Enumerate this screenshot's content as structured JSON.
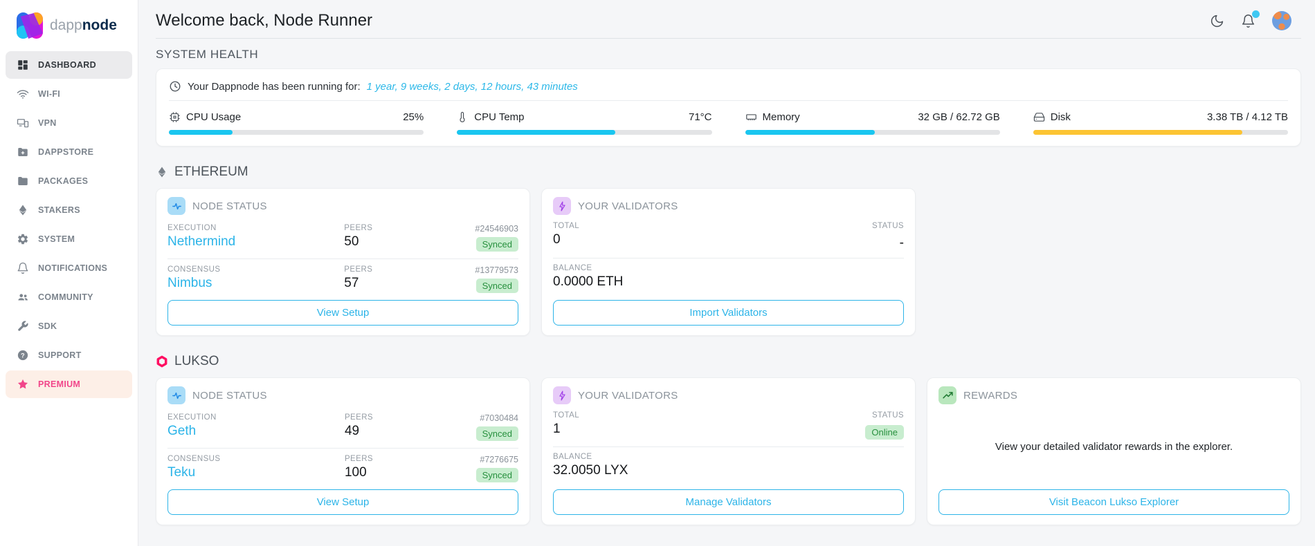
{
  "brand": {
    "name_light": "dapp",
    "name_bold": "node"
  },
  "sidebar": {
    "items": [
      {
        "label": "DASHBOARD"
      },
      {
        "label": "WI-FI"
      },
      {
        "label": "VPN"
      },
      {
        "label": "DAPPSTORE"
      },
      {
        "label": "PACKAGES"
      },
      {
        "label": "STAKERS"
      },
      {
        "label": "SYSTEM"
      },
      {
        "label": "NOTIFICATIONS"
      },
      {
        "label": "COMMUNITY"
      },
      {
        "label": "SDK"
      },
      {
        "label": "SUPPORT"
      },
      {
        "label": "PREMIUM"
      }
    ]
  },
  "header": {
    "title": "Welcome back, Node Runner"
  },
  "system_health": {
    "section_title": "SYSTEM HEALTH",
    "uptime_prefix": "Your Dappnode has been running for:",
    "uptime_value": "1 year, 9 weeks, 2 days, 12 hours, 43 minutes",
    "stats": [
      {
        "label": "CPU Usage",
        "value": "25%",
        "percent": 25,
        "color": "#1ac6f0"
      },
      {
        "label": "CPU Temp",
        "value": "71°C",
        "percent": 62,
        "color": "#1ac6f0"
      },
      {
        "label": "Memory",
        "value": "32 GB / 62.72 GB",
        "percent": 51,
        "color": "#1ac6f0"
      },
      {
        "label": "Disk",
        "value": "3.38 TB / 4.12 TB",
        "percent": 82,
        "color": "#fcc433"
      }
    ]
  },
  "sections": [
    {
      "title": "ETHEREUM",
      "node_status": {
        "title": "NODE STATUS",
        "rows": [
          {
            "kind": "EXECUTION",
            "client": "Nethermind",
            "peers_label": "PEERS",
            "peers": "50",
            "block": "#24546903",
            "status": "Synced"
          },
          {
            "kind": "CONSENSUS",
            "client": "Nimbus",
            "peers_label": "PEERS",
            "peers": "57",
            "block": "#13779573",
            "status": "Synced"
          }
        ],
        "button": "View Setup"
      },
      "validators": {
        "title": "YOUR VALIDATORS",
        "total_label": "TOTAL",
        "total": "0",
        "status_label": "STATUS",
        "status": "-",
        "balance_label": "BALANCE",
        "balance": "0.0000 ETH",
        "button": "Import Validators"
      }
    },
    {
      "title": "LUKSO",
      "node_status": {
        "title": "NODE STATUS",
        "rows": [
          {
            "kind": "EXECUTION",
            "client": "Geth",
            "peers_label": "PEERS",
            "peers": "49",
            "block": "#7030484",
            "status": "Synced"
          },
          {
            "kind": "CONSENSUS",
            "client": "Teku",
            "peers_label": "PEERS",
            "peers": "100",
            "block": "#7276675",
            "status": "Synced"
          }
        ],
        "button": "View Setup"
      },
      "validators": {
        "title": "YOUR VALIDATORS",
        "total_label": "TOTAL",
        "total": "1",
        "status_label": "STATUS",
        "status": "Online",
        "balance_label": "BALANCE",
        "balance": "32.0050 LYX",
        "button": "Manage Validators"
      },
      "rewards": {
        "title": "REWARDS",
        "text": "View your detailed validator rewards in the explorer.",
        "button": "Visit Beacon Lukso Explorer"
      }
    }
  ],
  "colors": {
    "accent_cyan": "#2cb4e8",
    "bar_cyan": "#1ac6f0",
    "bar_yellow": "#fcc433",
    "badge_green_bg": "#c8edcf",
    "badge_green_text": "#27903e",
    "premium_pink": "#f1468a"
  }
}
